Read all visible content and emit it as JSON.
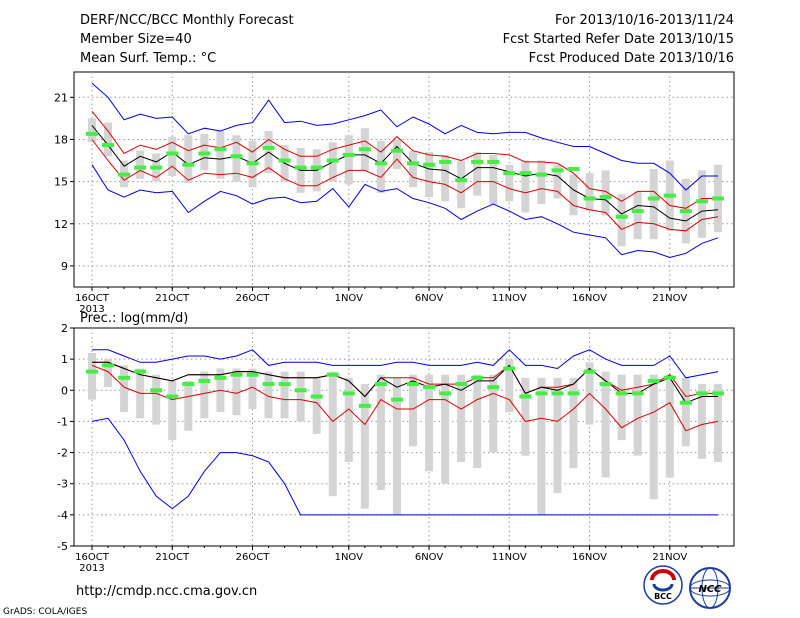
{
  "header": {
    "title": "DERF/NCC/BCC Monthly Forecast",
    "member_size": "Member Size=40",
    "variable": "Mean Surf. Temp.: °C",
    "period": "For 2013/10/16-2013/11/24",
    "refer_date": "Fcst Started Refer Date 2013/10/15",
    "produced_date": "Fcst Produced Date 2013/10/16"
  },
  "footer": {
    "url": "http://cmdp.ncc.cma.gov.cn",
    "grads": "GrADS: COLA/IGES",
    "logo_bcc": "BCC",
    "logo_ncc": "NCC"
  },
  "colors": {
    "envelope": "#0000dd",
    "spread": "#dd0000",
    "ensemble_mean": "#000000",
    "member_box": "#d4d4d4",
    "median_mark": "#44ee44",
    "grid": "#999999"
  },
  "chart_data": [
    {
      "type": "line",
      "title": "Mean Surf. Temp.: °C",
      "x_tick_labels": [
        "16OCT",
        "21OCT",
        "26OCT",
        "1NOV",
        "6NOV",
        "11NOV",
        "16NOV",
        "21NOV"
      ],
      "x_tick_days": [
        0,
        5,
        10,
        16,
        21,
        26,
        31,
        36
      ],
      "x_year_label": "2013",
      "ylim": [
        7.5,
        22.8
      ],
      "yticks": [
        9,
        12,
        15,
        18,
        21
      ],
      "grid": true,
      "series": [
        {
          "role": "max",
          "values": [
            22,
            21,
            19.4,
            19.8,
            19.5,
            19.6,
            18.4,
            18.8,
            18.6,
            19,
            19.2,
            20.8,
            19.2,
            19.3,
            19,
            19.1,
            19.4,
            19.7,
            20.1,
            18.9,
            19.6,
            19.1,
            18.4,
            19,
            18.5,
            18.4,
            18.5,
            18.5,
            18.1,
            17.8,
            17.5,
            17.5,
            17,
            16.5,
            16.3,
            16.3,
            15.6,
            14.4,
            15.4,
            15.4
          ]
        },
        {
          "role": "upper",
          "values": [
            20,
            18.6,
            17,
            17.6,
            17.3,
            17.8,
            17.2,
            17.6,
            17.4,
            17.8,
            17.1,
            18,
            17.3,
            16.8,
            16.8,
            17.3,
            17.6,
            17.9,
            17.1,
            18.2,
            17.2,
            16.9,
            16.8,
            16.5,
            17,
            17,
            16.9,
            16.4,
            16.4,
            16.3,
            15.6,
            14.5,
            14.3,
            13.6,
            14.3,
            14.3,
            13.3,
            13.1,
            13.8,
            13.8
          ]
        },
        {
          "role": "mean",
          "values": [
            19,
            17.6,
            16.1,
            16.8,
            16.4,
            17.1,
            16.2,
            16.7,
            16.6,
            16.8,
            16.3,
            17.1,
            16.3,
            15.8,
            15.8,
            16.4,
            16.9,
            16.9,
            16.3,
            17.5,
            16.3,
            15.9,
            15.8,
            15.2,
            16,
            16,
            15.7,
            15.4,
            15.6,
            15.4,
            14.4,
            13.8,
            13.7,
            12.7,
            13.3,
            13.2,
            12.4,
            12.2,
            12.9,
            13
          ]
        },
        {
          "role": "lower",
          "values": [
            18,
            16.5,
            15.1,
            15.8,
            15.3,
            16.1,
            15.1,
            15.6,
            15.5,
            15.6,
            15.3,
            16,
            15.2,
            14.7,
            14.7,
            15.3,
            15.8,
            15.8,
            15.3,
            16.6,
            15.3,
            15,
            14.8,
            14.2,
            15,
            15,
            14.5,
            14.2,
            14.5,
            14.3,
            13.3,
            13,
            12.8,
            11.6,
            12.1,
            12,
            11.6,
            11.5,
            12.3,
            12.5
          ]
        },
        {
          "role": "min",
          "values": [
            16.2,
            14.4,
            13.9,
            14.4,
            14.2,
            14.3,
            12.8,
            13.6,
            14.3,
            14,
            13.4,
            13.8,
            13.9,
            13.5,
            13.6,
            14.5,
            13.2,
            14.8,
            14.3,
            14.5,
            13.8,
            13.5,
            13.1,
            12.3,
            12.9,
            13.4,
            12.9,
            12.3,
            12.5,
            12,
            11.4,
            11.2,
            11,
            9.8,
            10.1,
            10,
            9.6,
            9.9,
            10.6,
            11
          ]
        }
      ],
      "boxes": [
        {
          "low": 17.8,
          "high": 19.5,
          "median": 18.4
        },
        {
          "low": 16.8,
          "high": 19.2,
          "median": 17.6
        },
        {
          "low": 14.6,
          "high": 16.5,
          "median": 15.5
        },
        {
          "low": 15.2,
          "high": 17.2,
          "median": 16
        },
        {
          "low": 15,
          "high": 17,
          "median": 16
        },
        {
          "low": 15.4,
          "high": 18.2,
          "median": 17
        },
        {
          "low": 14.9,
          "high": 18.3,
          "median": 16.2
        },
        {
          "low": 15.8,
          "high": 18.4,
          "median": 17
        },
        {
          "low": 15.2,
          "high": 18.6,
          "median": 17.3
        },
        {
          "low": 15,
          "high": 18.3,
          "median": 16.8
        },
        {
          "low": 14.6,
          "high": 17.9,
          "median": 16.3
        },
        {
          "low": 15.6,
          "high": 18.6,
          "median": 17.4
        },
        {
          "low": 15,
          "high": 17.6,
          "median": 16.5
        },
        {
          "low": 14.2,
          "high": 17.4,
          "median": 16
        },
        {
          "low": 14.3,
          "high": 17.3,
          "median": 16
        },
        {
          "low": 15,
          "high": 17.8,
          "median": 16.5
        },
        {
          "low": 14.8,
          "high": 18.3,
          "median": 16.9
        },
        {
          "low": 15.8,
          "high": 18.8,
          "median": 17.3
        },
        {
          "low": 14.2,
          "high": 17.9,
          "median": 16.3
        },
        {
          "low": 15.9,
          "high": 18,
          "median": 17.2
        },
        {
          "low": 14.6,
          "high": 17.2,
          "median": 16.3
        },
        {
          "low": 13.9,
          "high": 17.1,
          "median": 16.2
        },
        {
          "low": 13.6,
          "high": 16.9,
          "median": 16.4
        },
        {
          "low": 13.1,
          "high": 16.5,
          "median": 15.1
        },
        {
          "low": 14,
          "high": 17.1,
          "median": 16.4
        },
        {
          "low": 13.4,
          "high": 16.9,
          "median": 16.4
        },
        {
          "low": 13.6,
          "high": 16.2,
          "median": 15.6
        },
        {
          "low": 12.8,
          "high": 16.5,
          "median": 15.6
        },
        {
          "low": 13.4,
          "high": 16.5,
          "median": 15.5
        },
        {
          "low": 13.8,
          "high": 16.2,
          "median": 15.8
        },
        {
          "low": 12.6,
          "high": 15.5,
          "median": 15.9
        },
        {
          "low": 12.9,
          "high": 15.6,
          "median": 13.8
        },
        {
          "low": 12.6,
          "high": 15.8,
          "median": 13.9
        },
        {
          "low": 10.4,
          "high": 14.1,
          "median": 12.5
        },
        {
          "low": 10.9,
          "high": 14.3,
          "median": 12.9
        },
        {
          "low": 10.9,
          "high": 15.9,
          "median": 13.8
        },
        {
          "low": 11.5,
          "high": 16.5,
          "median": 14
        },
        {
          "low": 10.6,
          "high": 15.2,
          "median": 12.9
        },
        {
          "low": 11,
          "high": 15.8,
          "median": 13.6
        },
        {
          "low": 11.4,
          "high": 16.2,
          "median": 13.8
        }
      ]
    },
    {
      "type": "line",
      "title": "Prec.: log(mm/d)",
      "x_tick_labels": [
        "16OCT",
        "21OCT",
        "26OCT",
        "1NOV",
        "6NOV",
        "11NOV",
        "16NOV",
        "21NOV"
      ],
      "x_tick_days": [
        0,
        5,
        10,
        16,
        21,
        26,
        31,
        36
      ],
      "x_year_label": "2013",
      "ylim": [
        -5,
        2
      ],
      "yticks": [
        -5,
        -4,
        -3,
        -2,
        -1,
        0,
        1,
        2
      ],
      "grid": true,
      "series": [
        {
          "role": "max",
          "values": [
            1.3,
            1.3,
            1.1,
            0.9,
            0.9,
            1,
            1.1,
            1.1,
            1,
            1.1,
            1.3,
            0.8,
            0.9,
            0.9,
            0.9,
            0.8,
            0.8,
            0.8,
            0.8,
            0.9,
            0.9,
            0.8,
            0.8,
            0.8,
            0.9,
            0.8,
            1.3,
            0.8,
            0.8,
            0.7,
            1.1,
            1.3,
            1,
            0.8,
            0.8,
            0.8,
            1.1,
            0.4,
            0.5,
            0.6
          ]
        },
        {
          "role": "upper",
          "values": [
            0.9,
            0.9,
            0.7,
            0.5,
            0.4,
            0.3,
            0.5,
            0.5,
            0.5,
            0.6,
            0.6,
            0.5,
            0.4,
            0.4,
            0.4,
            0.5,
            0.3,
            -0.2,
            0.4,
            0.4,
            0.4,
            0.2,
            0.2,
            0.2,
            0.4,
            0.4,
            0.8,
            -0.1,
            0.1,
            0.1,
            0.2,
            0.7,
            0.3,
            0,
            0.1,
            0.2,
            0.5,
            -0.2,
            -0.1,
            -0.1
          ]
        },
        {
          "role": "mean",
          "values": [
            0.9,
            0.9,
            0.7,
            0.5,
            0.4,
            0.3,
            0.5,
            0.5,
            0.5,
            0.6,
            0.6,
            0.5,
            0.4,
            0.4,
            0.4,
            0.5,
            0.3,
            -0.2,
            0.4,
            0.1,
            0.3,
            0.1,
            0.2,
            0,
            0.3,
            0.3,
            0.8,
            -0.1,
            0.1,
            0,
            0.2,
            0.7,
            0.3,
            -0.1,
            -0.1,
            0.2,
            0.4,
            -0.4,
            -0.2,
            -0.2
          ]
        },
        {
          "role": "lower",
          "values": [
            0.8,
            0.6,
            0.1,
            -0.1,
            -0.1,
            -0.3,
            -0.2,
            -0.1,
            0,
            -0.1,
            0.1,
            -0.2,
            -0.3,
            -0.3,
            -0.4,
            -1,
            -0.6,
            -1.1,
            -0.3,
            -0.6,
            -0.6,
            -0.3,
            -0.3,
            -0.6,
            -0.3,
            -0.1,
            -0.3,
            -1,
            -0.9,
            -1,
            -0.6,
            -0.1,
            -0.6,
            -1.2,
            -0.9,
            -0.7,
            -0.4,
            -1.3,
            -1.1,
            -1
          ]
        },
        {
          "role": "min",
          "values": [
            -1,
            -0.9,
            -1.6,
            -2.6,
            -3.4,
            -3.8,
            -3.4,
            -2.6,
            -2,
            -2,
            -2.1,
            -2.3,
            -3,
            -4,
            -4,
            -4,
            -4,
            -4,
            -4,
            -4,
            -4,
            -4,
            -4,
            -4,
            -4,
            -4,
            -4,
            -4,
            -4,
            -4,
            -4,
            -4,
            -4,
            -4,
            -4,
            -4,
            -4,
            -4,
            -4,
            -4
          ]
        }
      ],
      "boxes": [
        {
          "low": -0.3,
          "high": 1.2,
          "median": 0.6
        },
        {
          "low": 0.1,
          "high": 1,
          "median": 0.8
        },
        {
          "low": -0.7,
          "high": 0.8,
          "median": 0.4
        },
        {
          "low": -0.9,
          "high": 0.7,
          "median": 0.6
        },
        {
          "low": -1.1,
          "high": 0.5,
          "median": 0
        },
        {
          "low": -1.6,
          "high": 0.3,
          "median": -0.2
        },
        {
          "low": -1.3,
          "high": 0.3,
          "median": 0.2
        },
        {
          "low": -0.9,
          "high": 0.6,
          "median": 0.3
        },
        {
          "low": -0.7,
          "high": 0.7,
          "median": 0.4
        },
        {
          "low": -0.8,
          "high": 0.7,
          "median": 0.5
        },
        {
          "low": -0.6,
          "high": 0.7,
          "median": 0.5
        },
        {
          "low": -0.9,
          "high": 0.6,
          "median": 0.2
        },
        {
          "low": -0.9,
          "high": 0.6,
          "median": 0.2
        },
        {
          "low": -1,
          "high": 0.6,
          "median": 0
        },
        {
          "low": -1.4,
          "high": 0.4,
          "median": -0.2
        },
        {
          "low": -3.4,
          "high": 0.6,
          "median": 0.5
        },
        {
          "low": -2.3,
          "high": 0.4,
          "median": -0.1
        },
        {
          "low": -3.8,
          "high": 0.2,
          "median": -0.5
        },
        {
          "low": -3.2,
          "high": 0.5,
          "median": 0.2
        },
        {
          "low": -4,
          "high": 0.4,
          "median": -0.3
        },
        {
          "low": -1.8,
          "high": 0.5,
          "median": 0.2
        },
        {
          "low": -2.6,
          "high": 0.5,
          "median": 0.1
        },
        {
          "low": -3,
          "high": 0.5,
          "median": -0.1
        },
        {
          "low": -2.3,
          "high": 0.5,
          "median": 0.2
        },
        {
          "low": -2.5,
          "high": 0.5,
          "median": 0.4
        },
        {
          "low": -2,
          "high": 0.5,
          "median": 0.1
        },
        {
          "low": -0.7,
          "high": 1,
          "median": 0.7
        },
        {
          "low": -2.1,
          "high": 0.4,
          "median": -0.2
        },
        {
          "low": -4,
          "high": 0.4,
          "median": -0.1
        },
        {
          "low": -3.3,
          "high": 0.4,
          "median": -0.1
        },
        {
          "low": -2.5,
          "high": 0.4,
          "median": -0.1
        },
        {
          "low": -1.1,
          "high": 0.9,
          "median": 0.6
        },
        {
          "low": -2.8,
          "high": 0.6,
          "median": 0.2
        },
        {
          "low": -1.6,
          "high": 0.5,
          "median": -0.1
        },
        {
          "low": -2.1,
          "high": 0.5,
          "median": -0.1
        },
        {
          "low": -3.5,
          "high": 0.5,
          "median": 0.3
        },
        {
          "low": -2.8,
          "high": 0.5,
          "median": 0.4
        },
        {
          "low": -1.8,
          "high": 0.4,
          "median": -0.4
        },
        {
          "low": -2.2,
          "high": 0.2,
          "median": -0.1
        },
        {
          "low": -2.3,
          "high": 0.2,
          "median": -0.1
        }
      ]
    }
  ]
}
